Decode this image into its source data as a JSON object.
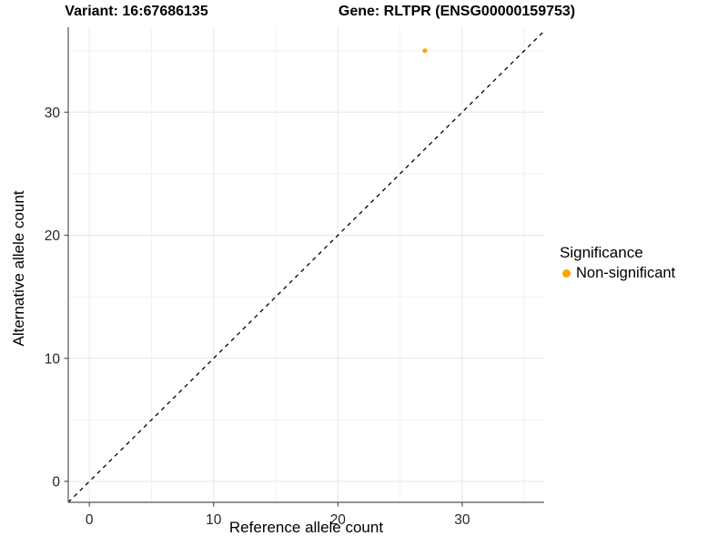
{
  "titles": {
    "variant": "Variant: 16:67686135",
    "gene": "Gene: RLTPR (ENSG00000159753)"
  },
  "chart_data": {
    "type": "scatter",
    "titles": {
      "variant": "Variant: 16:67686135",
      "gene": "Gene: RLTPR (ENSG00000159753)"
    },
    "xlabel": "Reference allele count",
    "ylabel": "Alternative allele count",
    "xlim": [
      -1.7,
      36.6
    ],
    "ylim": [
      -1.7,
      36.9
    ],
    "x_major_ticks": [
      0,
      10,
      20,
      30
    ],
    "y_major_ticks": [
      0,
      10,
      20,
      30
    ],
    "x_tick_labels": [
      "0",
      "10",
      "20",
      "30"
    ],
    "y_tick_labels": [
      "0",
      "10",
      "20",
      "30"
    ],
    "x_minor_ticks": [
      5,
      15,
      25,
      35
    ],
    "y_minor_ticks": [
      5,
      15,
      25,
      35
    ],
    "grid": true,
    "reference_line": {
      "type": "identity",
      "style": "dashed",
      "color": "#000000",
      "x1": -1.7,
      "y1": -1.7,
      "x2": 36.6,
      "y2": 36.6
    },
    "series": [
      {
        "name": "Non-significant",
        "color": "#FFA500",
        "points": [
          {
            "x": 27,
            "y": 35
          }
        ]
      }
    ],
    "legend": {
      "title": "Significance",
      "position": "right",
      "items": [
        {
          "label": "Non-significant",
          "color": "#FFA500"
        }
      ]
    },
    "style": {
      "grid_major": "#e7e7e7",
      "grid_minor": "#f2f2f2",
      "axis": "#555555",
      "tick_label": "#262626",
      "panel_background": "#ffffff"
    }
  }
}
